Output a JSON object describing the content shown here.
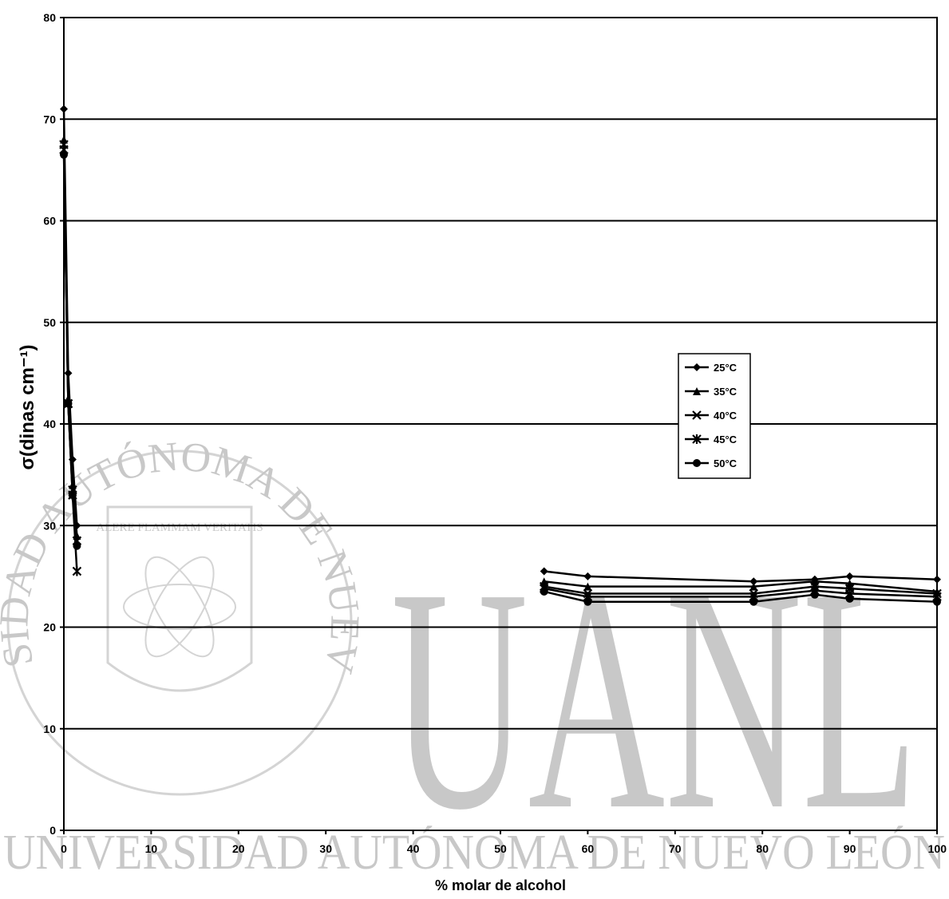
{
  "chart_data": {
    "type": "line",
    "title": "",
    "xlabel": "% molar de alcohol",
    "ylabel": "σ(dinas cm⁻¹)",
    "xlim": [
      0,
      100
    ],
    "ylim": [
      0,
      80
    ],
    "xticks": [
      0,
      10,
      20,
      30,
      40,
      50,
      60,
      70,
      80,
      90,
      100
    ],
    "yticks": [
      0,
      10,
      20,
      30,
      40,
      50,
      60,
      70,
      80
    ],
    "grid": "horizontal",
    "legend_position": "center-right",
    "series": [
      {
        "name": "25°C",
        "marker": "diamond",
        "x": [
          0,
          0.5,
          1.0,
          1.5,
          55,
          60,
          79,
          86,
          90,
          100
        ],
        "y": [
          71,
          45,
          36.5,
          30,
          25.5,
          25,
          24.5,
          24.7,
          25,
          24.7
        ]
      },
      {
        "name": "35°C",
        "marker": "triangle",
        "x": [
          0,
          0.5,
          1.0,
          1.5,
          55,
          60,
          79,
          86,
          90,
          100
        ],
        "y": [
          68,
          42.5,
          34,
          29,
          24.5,
          24,
          24,
          24.5,
          24.3,
          23.5
        ]
      },
      {
        "name": "40°C",
        "marker": "x",
        "x": [
          0,
          0.5,
          1.0,
          1.5,
          55,
          60,
          79,
          86,
          90,
          100
        ],
        "y": [
          67.5,
          42,
          33.5,
          28.5,
          24,
          23.3,
          23.3,
          24,
          23.8,
          23.3
        ]
      },
      {
        "name": "45°C",
        "marker": "star",
        "x": [
          0,
          0.5,
          1.0,
          1.5,
          55,
          60,
          79,
          86,
          90,
          100
        ],
        "y": [
          67,
          42,
          33,
          25.5,
          23.8,
          23,
          23,
          23.6,
          23.3,
          23
        ]
      },
      {
        "name": "50°C",
        "marker": "circle",
        "x": [
          0,
          0.5,
          1.0,
          1.5,
          55,
          60,
          79,
          86,
          90,
          100
        ],
        "y": [
          66.5,
          42,
          33,
          28,
          23.5,
          22.5,
          22.5,
          23.2,
          22.8,
          22.5
        ]
      }
    ]
  },
  "watermark": {
    "big_text": "UANL",
    "bottom_text": "UNIVERSIDAD AUTÓNOMA DE NUEVO LEÓN",
    "seal_ring_text": "UNIVERSIDAD AUTÓNOMA DE NUEVO LEÓN",
    "seal_motto": "ALERE FLAMMAM VERITATIS"
  }
}
